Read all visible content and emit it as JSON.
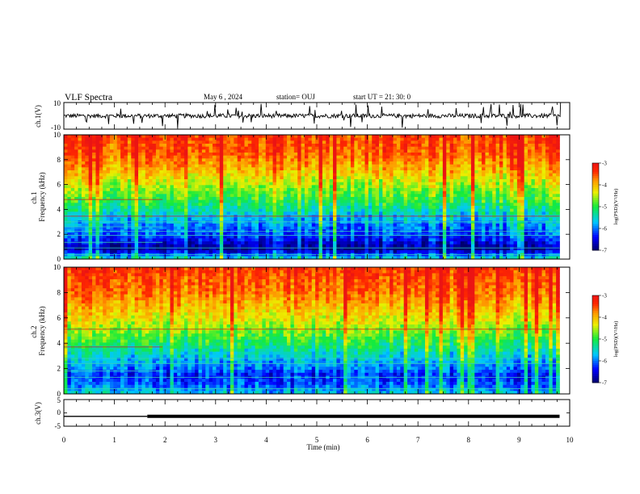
{
  "header": {
    "title": "VLF Spectra",
    "date": "May 6  , 2024",
    "station": "station= OUJ",
    "start": "start  UT =   21: 30: 0"
  },
  "chart_data": [
    {
      "type": "line",
      "panel": "ch1-voltage",
      "ylabel": "ch.1(V)",
      "ylim": [
        -10,
        10
      ],
      "yticks": [
        "10",
        "-10"
      ],
      "x_range": [
        0,
        10
      ],
      "baseline": 0,
      "noise": "spiky broadband signal, mostly within ±3 V, occasional spikes to ±10 V"
    },
    {
      "type": "heatmap",
      "panel": "ch1-spectrogram",
      "ylabel": "ch.1\nFrequency  (kHz)",
      "ylim": [
        0,
        10
      ],
      "yticks": [
        "0",
        "2",
        "4",
        "6",
        "8",
        "10"
      ],
      "x_range": [
        0,
        9.8
      ],
      "colorbar": {
        "label": "log(PSD)(V²/Hz)",
        "range": [
          -7,
          -3
        ],
        "ticks": [
          "-3",
          "-4",
          "-5",
          "-6",
          "-7"
        ]
      },
      "profile": [
        {
          "f": 0.0,
          "v": -5.5
        },
        {
          "f": 0.5,
          "v": -6.3
        },
        {
          "f": 0.8,
          "v": -6.9
        },
        {
          "f": 1.2,
          "v": -6.6
        },
        {
          "f": 1.7,
          "v": -6.3
        },
        {
          "f": 2.2,
          "v": -6.1
        },
        {
          "f": 2.8,
          "v": -5.9
        },
        {
          "f": 3.5,
          "v": -5.6
        },
        {
          "f": 4.5,
          "v": -5.1
        },
        {
          "f": 5.5,
          "v": -4.7
        },
        {
          "f": 6.5,
          "v": -4.3
        },
        {
          "f": 7.5,
          "v": -3.9
        },
        {
          "f": 8.5,
          "v": -3.6
        },
        {
          "f": 10.0,
          "v": -3.4
        }
      ],
      "lines_khz": [
        0.35,
        0.9,
        1.35,
        1.9,
        2.25,
        2.6,
        3.0,
        3.45,
        4.8
      ]
    },
    {
      "type": "heatmap",
      "panel": "ch2-spectrogram",
      "ylabel": "ch.2\nFrequency  (kHz)",
      "ylim": [
        0,
        10
      ],
      "yticks": [
        "0",
        "2",
        "4",
        "6",
        "8",
        "10"
      ],
      "x_range": [
        0,
        9.8
      ],
      "colorbar": {
        "label": "log(PSD)(V²/Hz)",
        "range": [
          -7,
          -3
        ],
        "ticks": [
          "-3",
          "-4",
          "-5",
          "-6",
          "-7"
        ]
      },
      "profile": [
        {
          "f": 0.0,
          "v": -5.6
        },
        {
          "f": 0.5,
          "v": -6.0
        },
        {
          "f": 1.0,
          "v": -6.2
        },
        {
          "f": 1.5,
          "v": -6.3
        },
        {
          "f": 2.0,
          "v": -6.0
        },
        {
          "f": 2.5,
          "v": -5.8
        },
        {
          "f": 3.2,
          "v": -5.5
        },
        {
          "f": 4.0,
          "v": -5.1
        },
        {
          "f": 5.0,
          "v": -4.7
        },
        {
          "f": 6.0,
          "v": -4.3
        },
        {
          "f": 7.0,
          "v": -4.0
        },
        {
          "f": 8.0,
          "v": -3.7
        },
        {
          "f": 10.0,
          "v": -3.4
        }
      ],
      "lines_khz": [
        0.4,
        1.3,
        1.8,
        2.4,
        2.8,
        3.7,
        5.1
      ]
    },
    {
      "type": "line",
      "panel": "ch3-voltage",
      "ylabel": "ch.3(V)",
      "ylim": [
        -5,
        5
      ],
      "yticks": [
        "5",
        "0",
        "-5"
      ],
      "x_range": [
        0,
        10
      ],
      "x": [
        0,
        1.65,
        1.65,
        9.8
      ],
      "y": [
        -1.3,
        -1.3,
        -1.3,
        -1.3
      ],
      "thick_from": 1.65,
      "xlabel": "Time  (min)",
      "xticks": [
        "0",
        "1",
        "2",
        "3",
        "4",
        "5",
        "6",
        "7",
        "8",
        "9",
        "10"
      ]
    }
  ]
}
